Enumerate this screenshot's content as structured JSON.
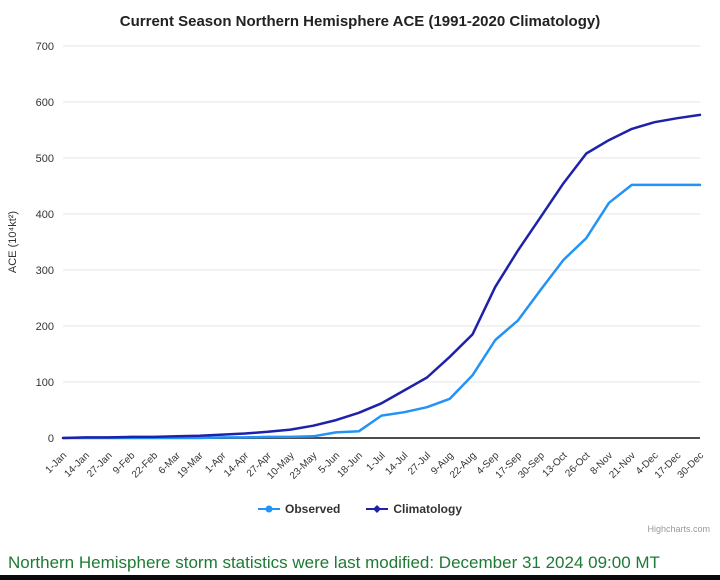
{
  "chart": {
    "colors": {
      "observed": "#2393f5",
      "climatology": "#1e22aa",
      "grid": "#e6e6e6",
      "axis_line": "#4d4d4d",
      "axis_text": "#333333",
      "title_text": "#222222",
      "footer_green": "#1e7a34",
      "credits_gray": "#999999"
    },
    "credits_label": "Highcharts.com"
  },
  "chart_data": {
    "type": "line",
    "title": "Current Season Northern Hemisphere ACE (1991-2020 Climatology)",
    "xlabel": "",
    "ylabel": "ACE (10⁴kt²)",
    "ylim": [
      0,
      700
    ],
    "yticks": [
      0,
      100,
      200,
      300,
      400,
      500,
      600,
      700
    ],
    "grid": true,
    "legend_position": "bottom",
    "categories": [
      "1-Jan",
      "14-Jan",
      "27-Jan",
      "9-Feb",
      "22-Feb",
      "6-Mar",
      "19-Mar",
      "1-Apr",
      "14-Apr",
      "27-Apr",
      "10-May",
      "23-May",
      "5-Jun",
      "18-Jun",
      "1-Jul",
      "14-Jul",
      "27-Jul",
      "9-Aug",
      "22-Aug",
      "4-Sep",
      "17-Sep",
      "30-Sep",
      "13-Oct",
      "26-Oct",
      "8-Nov",
      "21-Nov",
      "4-Dec",
      "17-Dec",
      "30-Dec"
    ],
    "series": [
      {
        "name": "Observed",
        "color": "#2393f5",
        "marker": "circle",
        "values": [
          0,
          0,
          0,
          0,
          0,
          0,
          0,
          1,
          1,
          2,
          2,
          3,
          10,
          12,
          40,
          46,
          55,
          70,
          112,
          175,
          210,
          265,
          318,
          357,
          420,
          452,
          452,
          452,
          452
        ]
      },
      {
        "name": "Climatology",
        "color": "#1e22aa",
        "marker": "diamond",
        "values": [
          0,
          1,
          1,
          2,
          2,
          3,
          4,
          6,
          8,
          11,
          15,
          22,
          32,
          45,
          62,
          85,
          108,
          145,
          185,
          270,
          335,
          395,
          455,
          508,
          532,
          552,
          564,
          571,
          577
        ]
      }
    ]
  },
  "footer": {
    "status_text": "Northern Hemisphere storm statistics were last modified: December 31 2024 09:00 MT"
  }
}
